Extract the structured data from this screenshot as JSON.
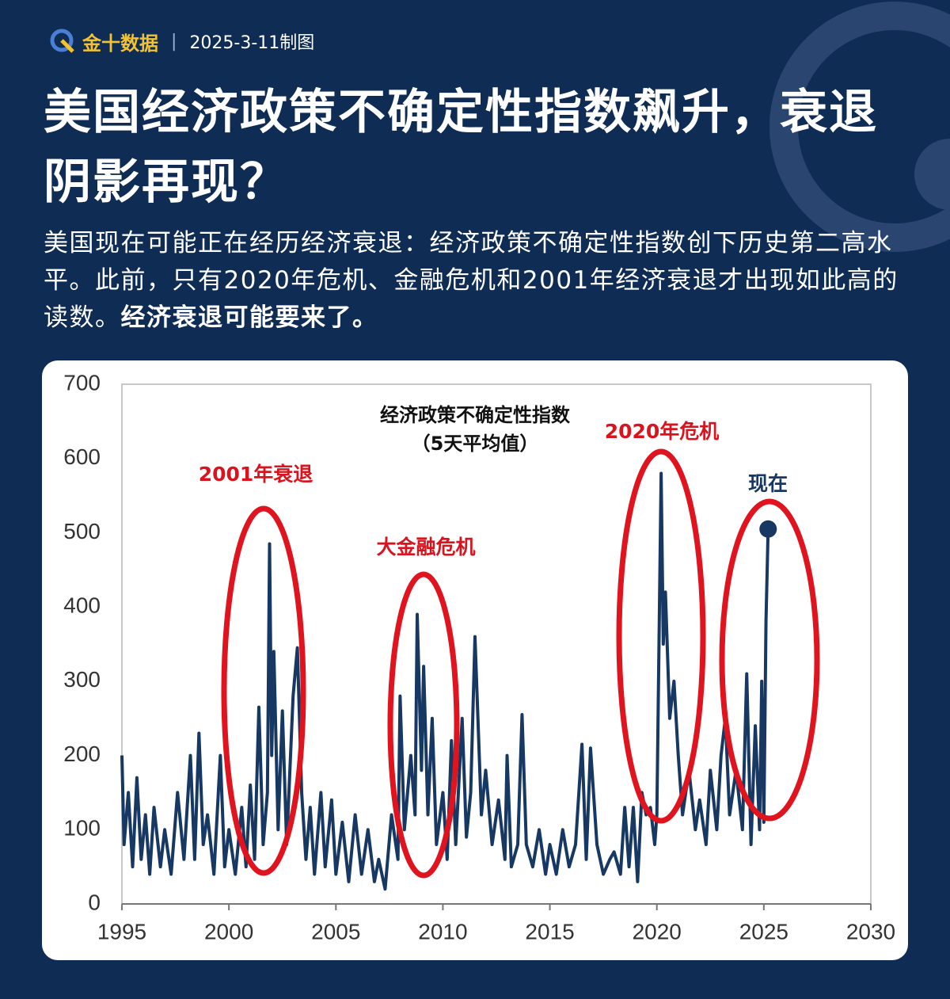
{
  "header": {
    "logo": "金十数据",
    "date": "2025-3-11制图",
    "title": "美国经济政策不确定性指数飙升，衰退阴影再现？",
    "body": "美国现在可能正在经历经济衰退：经济政策不确定性指数创下历史第二高水平。此前，只有2020年危机、金融危机和2001年经济衰退才出现如此高的读数。",
    "body_bold": "经济衰退可能要来了。"
  },
  "chart_data": {
    "type": "line",
    "title": "经济政策不确定性指数",
    "subtitle": "（5天平均值）",
    "annotations": [
      "2001年衰退",
      "大金融危机",
      "2020年危机",
      "现在"
    ],
    "xlim": [
      1995,
      2030
    ],
    "xticks": [
      1995,
      2000,
      2005,
      2010,
      2015,
      2020,
      2025,
      2030
    ],
    "ylim": [
      0,
      700
    ],
    "yticks": [
      0,
      100,
      200,
      300,
      400,
      500,
      600,
      700
    ],
    "x": [
      1995.0,
      1995.1,
      1995.3,
      1995.5,
      1995.7,
      1995.9,
      1996.1,
      1996.3,
      1996.5,
      1996.8,
      1997.0,
      1997.3,
      1997.6,
      1997.9,
      1998.2,
      1998.4,
      1998.6,
      1998.8,
      1999.0,
      1999.3,
      1999.6,
      1999.8,
      2000.0,
      2000.3,
      2000.6,
      2000.8,
      2001.0,
      2001.2,
      2001.4,
      2001.6,
      2001.8,
      2001.9,
      2002.0,
      2002.1,
      2002.3,
      2002.5,
      2002.7,
      2003.0,
      2003.2,
      2003.4,
      2003.6,
      2003.8,
      2004.0,
      2004.3,
      2004.5,
      2004.8,
      2005.0,
      2005.3,
      2005.6,
      2005.9,
      2006.2,
      2006.5,
      2006.8,
      2007.0,
      2007.3,
      2007.6,
      2007.9,
      2008.0,
      2008.2,
      2008.5,
      2008.7,
      2008.8,
      2009.0,
      2009.1,
      2009.3,
      2009.5,
      2009.7,
      2010.0,
      2010.2,
      2010.4,
      2010.6,
      2010.9,
      2011.1,
      2011.3,
      2011.5,
      2011.8,
      2012.0,
      2012.3,
      2012.6,
      2012.9,
      2013.0,
      2013.2,
      2013.5,
      2013.7,
      2013.9,
      2014.2,
      2014.5,
      2014.8,
      2015.0,
      2015.3,
      2015.6,
      2015.9,
      2016.2,
      2016.5,
      2016.7,
      2016.9,
      2017.2,
      2017.5,
      2017.8,
      2018.0,
      2018.3,
      2018.5,
      2018.7,
      2018.9,
      2019.1,
      2019.3,
      2019.5,
      2019.7,
      2019.9,
      2020.0,
      2020.2,
      2020.3,
      2020.4,
      2020.6,
      2020.8,
      2021.0,
      2021.2,
      2021.5,
      2021.8,
      2022.0,
      2022.3,
      2022.5,
      2022.8,
      2023.0,
      2023.2,
      2023.4,
      2023.7,
      2024.0,
      2024.2,
      2024.4,
      2024.6,
      2024.8,
      2024.9,
      2025.0,
      2025.1,
      2025.2
    ],
    "series": [
      {
        "color": "#163862",
        "values": [
          200,
          80,
          150,
          50,
          170,
          60,
          120,
          40,
          130,
          50,
          100,
          40,
          150,
          60,
          200,
          60,
          230,
          80,
          120,
          40,
          200,
          50,
          100,
          40,
          130,
          50,
          160,
          60,
          265,
          80,
          150,
          485,
          200,
          340,
          100,
          260,
          80,
          280,
          345,
          150,
          60,
          130,
          40,
          150,
          50,
          140,
          40,
          110,
          30,
          120,
          40,
          100,
          30,
          60,
          20,
          120,
          60,
          280,
          100,
          200,
          120,
          390,
          180,
          320,
          120,
          250,
          80,
          150,
          60,
          220,
          80,
          250,
          90,
          150,
          360,
          120,
          180,
          80,
          140,
          60,
          200,
          50,
          80,
          255,
          80,
          50,
          100,
          40,
          80,
          40,
          100,
          50,
          80,
          215,
          60,
          210,
          80,
          40,
          60,
          70,
          40,
          130,
          50,
          130,
          30,
          150,
          120,
          130,
          80,
          120,
          580,
          350,
          420,
          250,
          300,
          200,
          120,
          180,
          100,
          140,
          80,
          180,
          100,
          200,
          250,
          120,
          180,
          100,
          310,
          80,
          240,
          100,
          300,
          110,
          380,
          505
        ]
      }
    ]
  }
}
